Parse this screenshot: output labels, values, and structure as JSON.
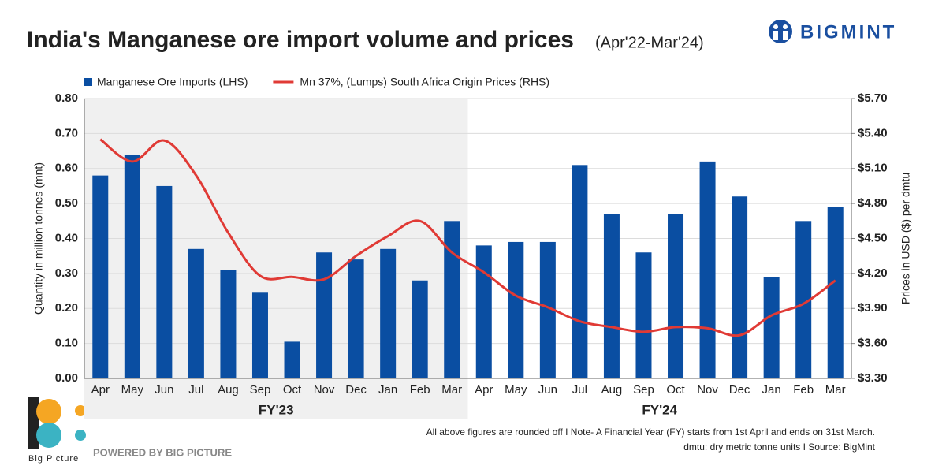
{
  "header": {
    "title": "India's Manganese ore import volume and prices",
    "subtitle": "(Apr'22-Mar'24)",
    "brand": "BIGMINT"
  },
  "chart_data": {
    "type": "bar-line",
    "categories": [
      "Apr",
      "May",
      "Jun",
      "Jul",
      "Aug",
      "Sep",
      "Oct",
      "Nov",
      "Dec",
      "Jan",
      "Feb",
      "Mar",
      "Apr",
      "May",
      "Jun",
      "Jul",
      "Aug",
      "Sep",
      "Oct",
      "Nov",
      "Dec",
      "Jan",
      "Feb",
      "Mar"
    ],
    "groups": [
      "FY'23",
      "FY'24"
    ],
    "series": [
      {
        "name": "Manganese Ore Imports (LHS)",
        "type": "bar",
        "color": "#0a4ea2",
        "values": [
          0.58,
          0.64,
          0.55,
          0.37,
          0.31,
          0.245,
          0.105,
          0.36,
          0.34,
          0.37,
          0.28,
          0.45,
          0.38,
          0.39,
          0.39,
          0.61,
          0.47,
          0.36,
          0.47,
          0.62,
          0.52,
          0.29,
          0.45,
          0.49
        ]
      },
      {
        "name": "Mn 37%, (Lumps) South Africa Origin Prices (RHS)",
        "type": "line",
        "axis": "y2",
        "color": "#e03a35",
        "values": [
          5.35,
          5.16,
          5.34,
          5.04,
          4.55,
          4.18,
          4.17,
          4.15,
          4.35,
          4.52,
          4.65,
          4.38,
          4.21,
          4.01,
          3.91,
          3.79,
          3.74,
          3.7,
          3.74,
          3.73,
          3.67,
          3.84,
          3.94,
          4.14
        ]
      }
    ],
    "y_label": "Quantity in million tonnes (mnt)",
    "y2_label": "Prices in USD ($) per dmtu",
    "ylim": [
      0,
      0.8
    ],
    "yticks": [
      {
        "value": 0,
        "label": "0.00"
      },
      {
        "value": 0.1,
        "label": "0.10"
      },
      {
        "value": 0.2,
        "label": "0.20"
      },
      {
        "value": 0.3,
        "label": "0.30"
      },
      {
        "value": 0.4,
        "label": "0.40"
      },
      {
        "value": 0.5,
        "label": "0.50"
      },
      {
        "value": 0.6,
        "label": "0.60"
      },
      {
        "value": 0.7,
        "label": "0.70"
      },
      {
        "value": 0.8,
        "label": "0.80"
      }
    ],
    "y2lim": [
      3.3,
      5.7
    ],
    "y2ticks": [
      {
        "value": 3.3,
        "label": "$3.30"
      },
      {
        "value": 3.6,
        "label": "$3.60"
      },
      {
        "value": 3.9,
        "label": "$3.90"
      },
      {
        "value": 4.2,
        "label": "$4.20"
      },
      {
        "value": 4.5,
        "label": "$4.50"
      },
      {
        "value": 4.8,
        "label": "$4.80"
      },
      {
        "value": 5.1,
        "label": "$5.10"
      },
      {
        "value": 5.4,
        "label": "$5.40"
      },
      {
        "value": 5.7,
        "label": "$5.70"
      }
    ],
    "grid": true
  },
  "footer": {
    "note1": "All above figures are rounded off  I  Note- A Financial Year (FY) starts from 1st April and ends on 31st March.",
    "note2": "dmtu: dry metric tonne units  I  Source: BigMint",
    "logo_text": "Big Picture",
    "powered": "POWERED BY BIG PICTURE"
  }
}
